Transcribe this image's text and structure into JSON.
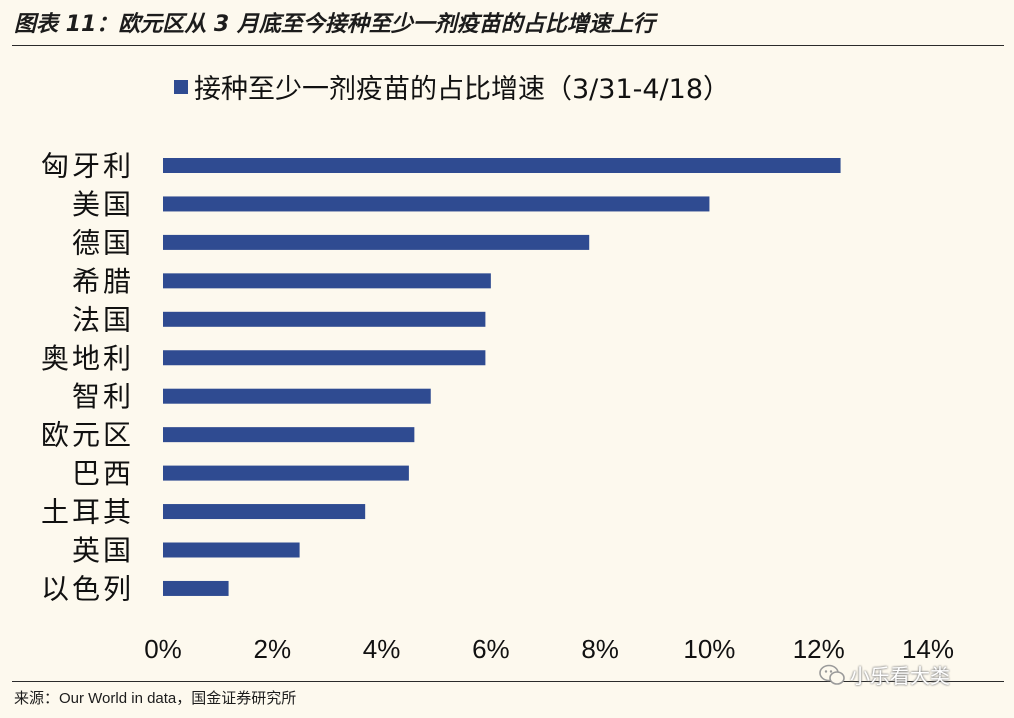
{
  "figure": {
    "title": "图表 11：欧元区从 3 月底至今接种至少一剂疫苗的占比增速上行",
    "source": "来源：Our World in data，国金证券研究所",
    "watermark": "小乐看大类"
  },
  "chart_data": {
    "type": "bar",
    "orientation": "horizontal",
    "title": "接种至少一剂疫苗的占比增速（3/31-4/18）",
    "legend": {
      "show": true,
      "placement": "top"
    },
    "series": [
      {
        "name": "接种至少一剂疫苗的占比增速（3/31-4/18）",
        "color": "#2f4b91",
        "values": [
          12.4,
          10.0,
          7.8,
          6.0,
          5.9,
          5.9,
          4.9,
          4.6,
          4.5,
          3.7,
          2.5,
          1.2
        ]
      }
    ],
    "categories": [
      "匈牙利",
      "美国",
      "德国",
      "希腊",
      "法国",
      "奥地利",
      "智利",
      "欧元区",
      "巴西",
      "土耳其",
      "英国",
      "以色列"
    ],
    "xlim": [
      0,
      14
    ],
    "xticks": [
      0,
      2,
      4,
      6,
      8,
      10,
      12,
      14
    ],
    "tick_format": "{v}%",
    "grid": false,
    "xlabel": "",
    "ylabel": ""
  }
}
